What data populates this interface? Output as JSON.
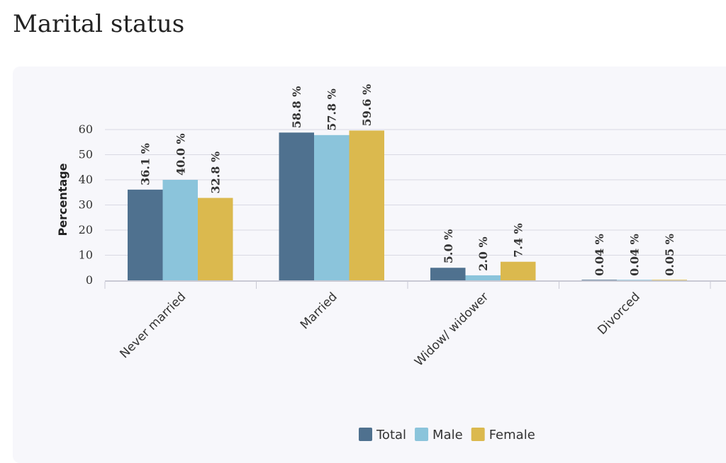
{
  "page": {
    "title": "Marital status"
  },
  "chart_data": {
    "type": "bar",
    "categories": [
      "Never married",
      "Married",
      "Widow/ widower",
      "Divorced"
    ],
    "series": [
      {
        "name": "Total",
        "values": [
          36.1,
          58.8,
          5.0,
          0.04
        ],
        "labels": [
          "36.1 %",
          "58.8 %",
          "5.0 %",
          "0.04 %"
        ],
        "color": "#4f718f"
      },
      {
        "name": "Male",
        "values": [
          40.0,
          57.8,
          2.0,
          0.04
        ],
        "labels": [
          "40.0 %",
          "57.8 %",
          "2.0 %",
          "0.04 %"
        ],
        "color": "#8bc4db"
      },
      {
        "name": "Female",
        "values": [
          32.8,
          59.6,
          7.4,
          0.05
        ],
        "labels": [
          "32.8 %",
          "59.6 %",
          "7.4 %",
          "0.05 %"
        ],
        "color": "#dbb94e"
      }
    ],
    "title": "",
    "xlabel": "",
    "ylabel": "Percentage",
    "yticks": [
      0,
      10,
      20,
      30,
      40,
      50,
      60
    ],
    "ylim": [
      0,
      60
    ],
    "grid": true,
    "legend": "bottom"
  }
}
